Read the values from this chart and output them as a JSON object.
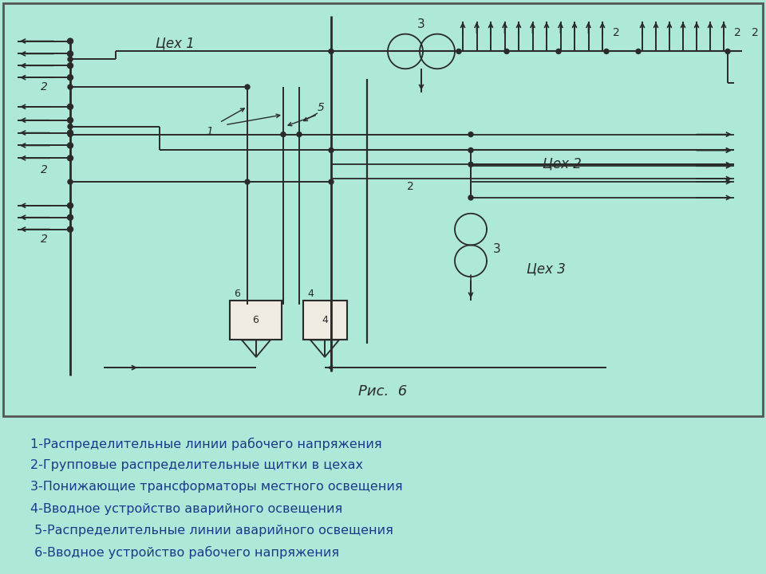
{
  "bg_diagram": "#f0ebe0",
  "bg_bottom": "#aee8d8",
  "border_color": "#555555",
  "line_color": "#2a2a2a",
  "text_color": "#1a3a8a",
  "diagram_title": "Рис.  6",
  "legend_lines": [
    "1-Распределительные линии рабочего напряжения",
    "2-Групповые распределительные щитки в цехах",
    "3-Понижающие трансформаторы местного освещения",
    "4-Вводное устройство аварийного освещения",
    " 5-Распределительные линии аварийного освещения",
    " 6-Вводное устройство рабочего напряжения"
  ]
}
